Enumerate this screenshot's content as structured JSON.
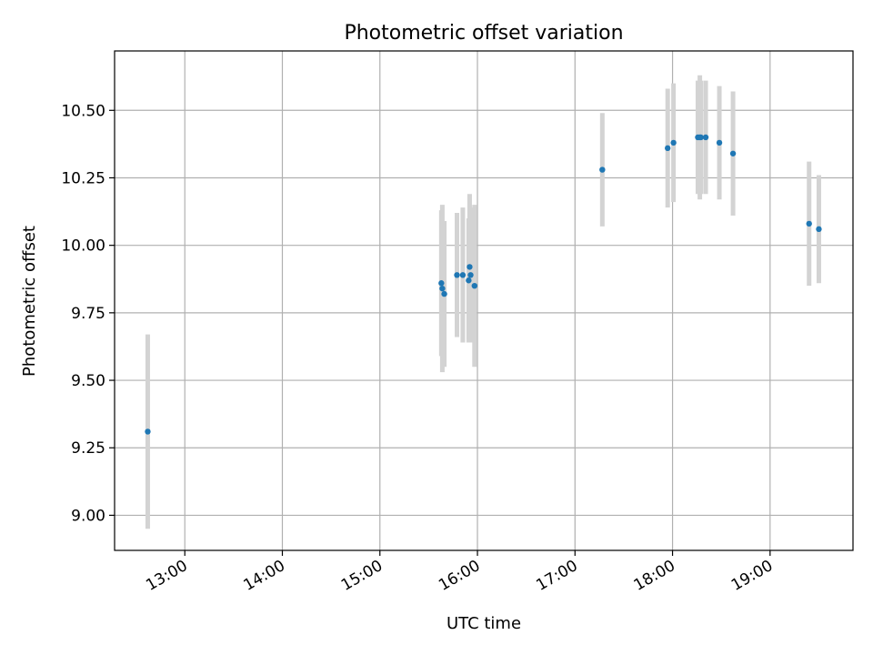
{
  "chart_data": {
    "type": "scatter",
    "title": "Photometric offset variation",
    "xlabel": "UTC time",
    "ylabel": "Photometric offset",
    "x_unit": "hours UTC",
    "xlim": [
      12.28,
      19.85
    ],
    "ylim": [
      8.87,
      10.72
    ],
    "xticks": [
      {
        "value": 13,
        "label": "13:00"
      },
      {
        "value": 14,
        "label": "14:00"
      },
      {
        "value": 15,
        "label": "15:00"
      },
      {
        "value": 16,
        "label": "16:00"
      },
      {
        "value": 17,
        "label": "17:00"
      },
      {
        "value": 18,
        "label": "18:00"
      },
      {
        "value": 19,
        "label": "19:00"
      }
    ],
    "yticks": [
      {
        "value": 9.0,
        "label": "9.00"
      },
      {
        "value": 9.25,
        "label": "9.25"
      },
      {
        "value": 9.5,
        "label": "9.50"
      },
      {
        "value": 9.75,
        "label": "9.75"
      },
      {
        "value": 10.0,
        "label": "10.00"
      },
      {
        "value": 10.25,
        "label": "10.25"
      },
      {
        "value": 10.5,
        "label": "10.50"
      }
    ],
    "grid": true,
    "point_color": "#1f77b4",
    "errorbar_color": "#d3d3d3",
    "points": [
      {
        "x": 12.62,
        "y": 9.31,
        "err": 0.36
      },
      {
        "x": 15.63,
        "y": 9.86,
        "err": 0.27
      },
      {
        "x": 15.64,
        "y": 9.84,
        "err": 0.31
      },
      {
        "x": 15.66,
        "y": 9.82,
        "err": 0.27
      },
      {
        "x": 15.79,
        "y": 9.89,
        "err": 0.23
      },
      {
        "x": 15.85,
        "y": 9.89,
        "err": 0.25
      },
      {
        "x": 15.91,
        "y": 9.87,
        "err": 0.23
      },
      {
        "x": 15.92,
        "y": 9.92,
        "err": 0.27
      },
      {
        "x": 15.93,
        "y": 9.89,
        "err": 0.25
      },
      {
        "x": 15.97,
        "y": 9.85,
        "err": 0.3
      },
      {
        "x": 17.28,
        "y": 10.28,
        "err": 0.21
      },
      {
        "x": 17.95,
        "y": 10.36,
        "err": 0.22
      },
      {
        "x": 18.01,
        "y": 10.38,
        "err": 0.22
      },
      {
        "x": 18.26,
        "y": 10.4,
        "err": 0.21
      },
      {
        "x": 18.28,
        "y": 10.4,
        "err": 0.23
      },
      {
        "x": 18.29,
        "y": 10.4,
        "err": 0.21
      },
      {
        "x": 18.34,
        "y": 10.4,
        "err": 0.21
      },
      {
        "x": 18.48,
        "y": 10.38,
        "err": 0.21
      },
      {
        "x": 18.62,
        "y": 10.34,
        "err": 0.23
      },
      {
        "x": 19.4,
        "y": 10.08,
        "err": 0.23
      },
      {
        "x": 19.5,
        "y": 10.06,
        "err": 0.2
      }
    ]
  }
}
